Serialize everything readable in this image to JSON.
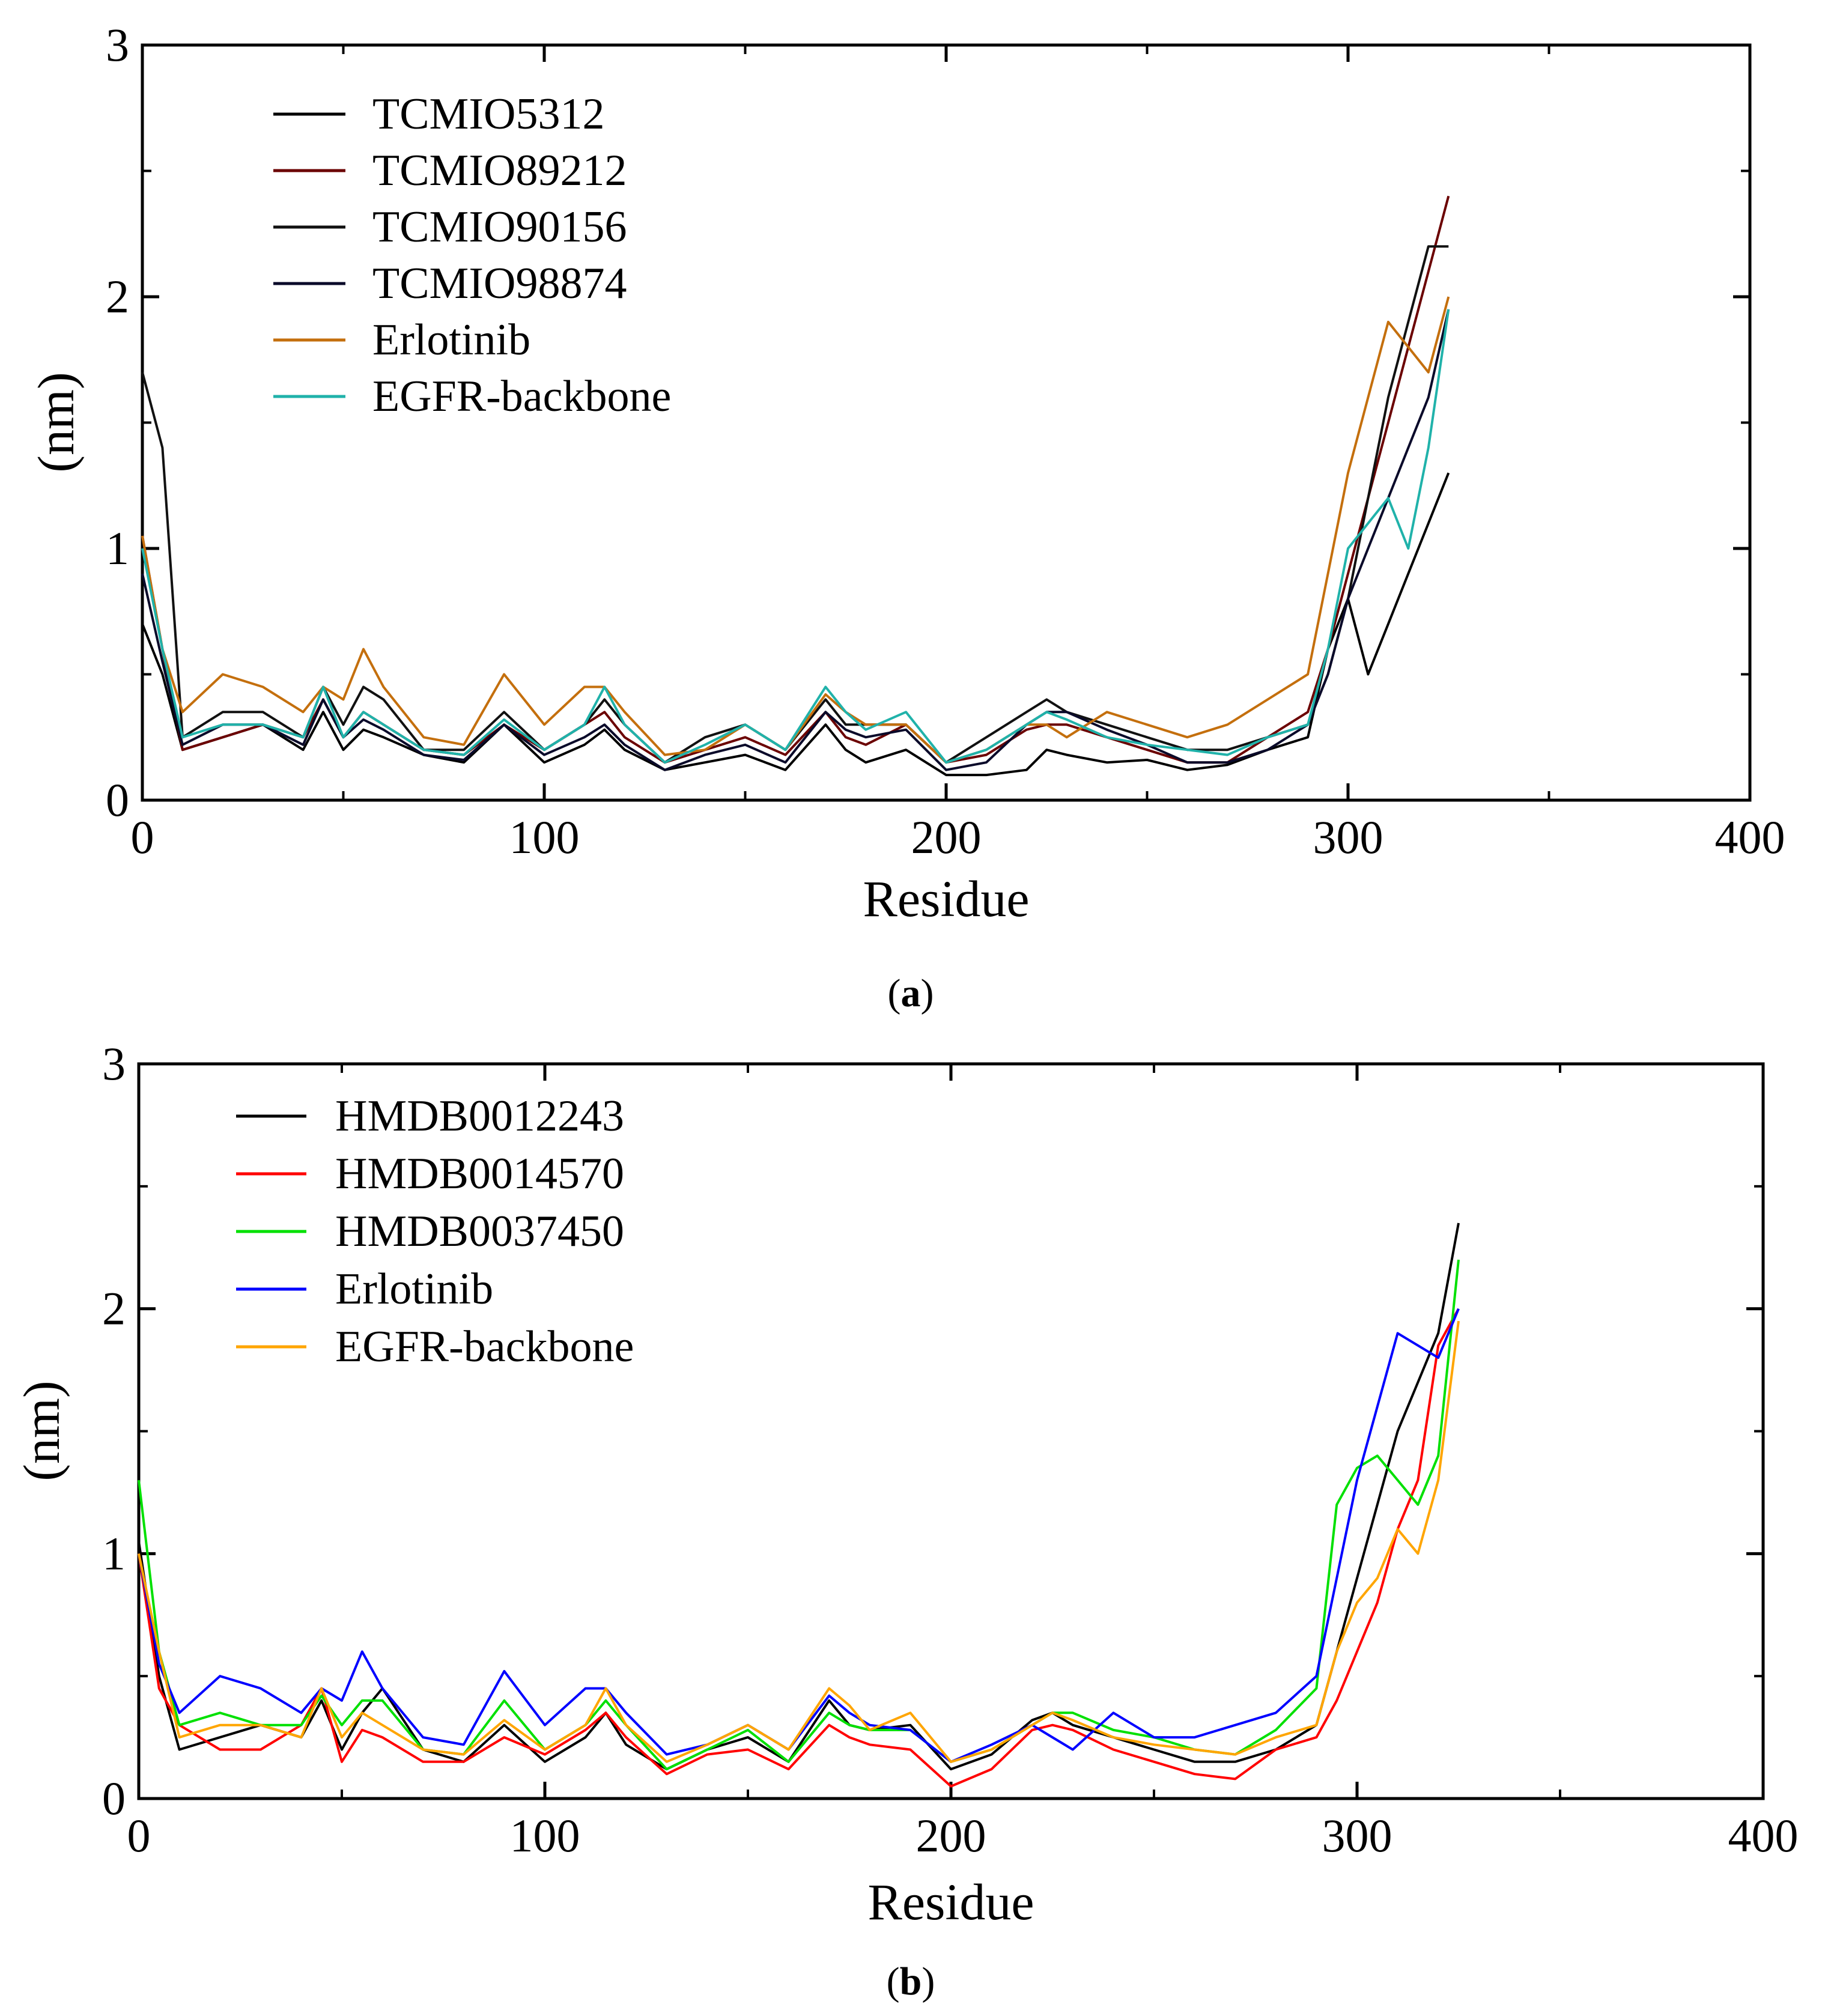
{
  "chart_data": [
    {
      "type": "line",
      "panel_label": "a",
      "xlabel": "Residue",
      "ylabel": "(nm)",
      "xlim": [
        0,
        400
      ],
      "ylim": [
        0,
        3
      ],
      "xticks": [
        "0",
        "100",
        "200",
        "300",
        "400"
      ],
      "yticks": [
        "0",
        "1",
        "2",
        "3"
      ],
      "grid": false,
      "legend_position": "top-left",
      "series": [
        {
          "name": "TCMIO5312",
          "color": "#000000",
          "x": [
            0,
            5,
            10,
            20,
            30,
            40,
            45,
            50,
            55,
            60,
            70,
            80,
            90,
            100,
            110,
            115,
            120,
            130,
            140,
            150,
            160,
            170,
            175,
            180,
            190,
            200,
            210,
            220,
            225,
            230,
            240,
            250,
            260,
            270,
            280,
            290,
            295,
            300,
            305,
            310,
            315,
            320,
            325
          ],
          "y": [
            0.7,
            0.5,
            0.2,
            0.25,
            0.3,
            0.2,
            0.35,
            0.2,
            0.28,
            0.25,
            0.18,
            0.15,
            0.3,
            0.15,
            0.22,
            0.28,
            0.2,
            0.12,
            0.15,
            0.18,
            0.12,
            0.3,
            0.2,
            0.15,
            0.2,
            0.1,
            0.1,
            0.12,
            0.2,
            0.18,
            0.15,
            0.16,
            0.12,
            0.14,
            0.2,
            0.25,
            0.6,
            0.8,
            0.5,
            0.7,
            0.9,
            1.1,
            1.3
          ]
        },
        {
          "name": "TCMIO89212",
          "color": "#6b0000",
          "x": [
            0,
            5,
            10,
            20,
            30,
            40,
            45,
            50,
            55,
            60,
            70,
            80,
            90,
            100,
            110,
            115,
            120,
            130,
            140,
            150,
            160,
            170,
            175,
            180,
            190,
            200,
            210,
            220,
            225,
            230,
            240,
            250,
            260,
            270,
            280,
            290,
            295,
            300,
            305,
            310,
            315,
            320,
            325
          ],
          "y": [
            1.05,
            0.6,
            0.2,
            0.25,
            0.3,
            0.25,
            0.4,
            0.25,
            0.35,
            0.3,
            0.2,
            0.18,
            0.3,
            0.2,
            0.3,
            0.35,
            0.25,
            0.15,
            0.2,
            0.25,
            0.18,
            0.35,
            0.25,
            0.22,
            0.3,
            0.15,
            0.18,
            0.28,
            0.3,
            0.3,
            0.25,
            0.2,
            0.15,
            0.15,
            0.25,
            0.35,
            0.6,
            0.9,
            1.2,
            1.5,
            1.8,
            2.1,
            2.4
          ]
        },
        {
          "name": "TCMIO90156",
          "color": "#111111",
          "x": [
            0,
            5,
            10,
            20,
            30,
            40,
            45,
            50,
            55,
            60,
            70,
            80,
            90,
            100,
            110,
            115,
            120,
            130,
            140,
            150,
            160,
            170,
            175,
            180,
            190,
            200,
            210,
            220,
            225,
            230,
            240,
            250,
            260,
            270,
            280,
            290,
            295,
            300,
            305,
            310,
            315,
            320,
            325
          ],
          "y": [
            1.7,
            1.4,
            0.25,
            0.35,
            0.35,
            0.25,
            0.45,
            0.3,
            0.45,
            0.4,
            0.2,
            0.2,
            0.35,
            0.2,
            0.3,
            0.4,
            0.3,
            0.15,
            0.25,
            0.3,
            0.2,
            0.4,
            0.3,
            0.3,
            0.3,
            0.15,
            0.25,
            0.35,
            0.4,
            0.35,
            0.3,
            0.25,
            0.2,
            0.2,
            0.25,
            0.3,
            0.5,
            0.8,
            1.2,
            1.6,
            1.9,
            2.2,
            2.2
          ]
        },
        {
          "name": "TCMIO98874",
          "color": "#0a0a2a",
          "x": [
            0,
            5,
            10,
            20,
            30,
            40,
            45,
            50,
            55,
            60,
            70,
            80,
            90,
            100,
            110,
            115,
            120,
            130,
            140,
            150,
            160,
            170,
            175,
            180,
            190,
            200,
            210,
            220,
            225,
            230,
            240,
            250,
            260,
            270,
            280,
            290,
            295,
            300,
            305,
            310,
            315,
            320,
            325
          ],
          "y": [
            0.9,
            0.55,
            0.22,
            0.3,
            0.3,
            0.22,
            0.4,
            0.25,
            0.32,
            0.28,
            0.18,
            0.16,
            0.3,
            0.18,
            0.25,
            0.3,
            0.22,
            0.12,
            0.18,
            0.22,
            0.15,
            0.35,
            0.28,
            0.25,
            0.28,
            0.12,
            0.15,
            0.3,
            0.35,
            0.35,
            0.28,
            0.22,
            0.15,
            0.15,
            0.2,
            0.3,
            0.5,
            0.8,
            1.0,
            1.2,
            1.4,
            1.6,
            1.95
          ]
        },
        {
          "name": "Erlotinib",
          "color": "#c46f0d",
          "x": [
            0,
            5,
            10,
            20,
            30,
            40,
            45,
            50,
            55,
            60,
            70,
            80,
            90,
            100,
            110,
            115,
            120,
            130,
            140,
            150,
            160,
            170,
            175,
            180,
            190,
            200,
            210,
            220,
            225,
            230,
            240,
            250,
            260,
            270,
            280,
            290,
            295,
            300,
            305,
            310,
            315,
            320,
            325
          ],
          "y": [
            1.05,
            0.6,
            0.35,
            0.5,
            0.45,
            0.35,
            0.45,
            0.4,
            0.6,
            0.45,
            0.25,
            0.22,
            0.5,
            0.3,
            0.45,
            0.45,
            0.35,
            0.18,
            0.2,
            0.3,
            0.2,
            0.42,
            0.35,
            0.3,
            0.3,
            0.15,
            0.2,
            0.3,
            0.3,
            0.25,
            0.35,
            0.3,
            0.25,
            0.3,
            0.4,
            0.5,
            0.9,
            1.3,
            1.6,
            1.9,
            1.8,
            1.7,
            2.0
          ]
        },
        {
          "name": "EGFR-backbone",
          "color": "#20b2aa",
          "x": [
            0,
            5,
            10,
            20,
            30,
            40,
            45,
            50,
            55,
            60,
            70,
            80,
            90,
            100,
            110,
            115,
            120,
            130,
            140,
            150,
            160,
            170,
            175,
            180,
            190,
            200,
            210,
            220,
            225,
            230,
            240,
            250,
            260,
            270,
            280,
            290,
            295,
            300,
            305,
            310,
            315,
            320,
            325
          ],
          "y": [
            1.0,
            0.6,
            0.25,
            0.3,
            0.3,
            0.25,
            0.45,
            0.25,
            0.35,
            0.3,
            0.2,
            0.18,
            0.32,
            0.2,
            0.3,
            0.45,
            0.3,
            0.15,
            0.22,
            0.3,
            0.2,
            0.45,
            0.35,
            0.28,
            0.35,
            0.15,
            0.2,
            0.3,
            0.35,
            0.32,
            0.25,
            0.22,
            0.2,
            0.18,
            0.25,
            0.3,
            0.6,
            1.0,
            1.1,
            1.2,
            1.0,
            1.4,
            1.95
          ]
        }
      ]
    },
    {
      "type": "line",
      "panel_label": "b",
      "xlabel": "Residue",
      "ylabel": "(nm)",
      "xlim": [
        0,
        400
      ],
      "ylim": [
        0,
        3
      ],
      "xticks": [
        "0",
        "100",
        "200",
        "300",
        "400"
      ],
      "yticks": [
        "0",
        "1",
        "2",
        "3"
      ],
      "grid": false,
      "legend_position": "top-left",
      "series": [
        {
          "name": "HMDB0012243",
          "color": "#000000",
          "x": [
            0,
            5,
            10,
            20,
            30,
            40,
            45,
            50,
            55,
            60,
            70,
            80,
            90,
            100,
            110,
            115,
            120,
            130,
            140,
            150,
            160,
            170,
            175,
            180,
            190,
            200,
            210,
            220,
            225,
            230,
            240,
            250,
            260,
            270,
            280,
            290,
            295,
            300,
            305,
            310,
            315,
            320,
            325
          ],
          "y": [
            1.05,
            0.5,
            0.2,
            0.25,
            0.3,
            0.25,
            0.4,
            0.2,
            0.35,
            0.45,
            0.2,
            0.15,
            0.3,
            0.15,
            0.25,
            0.35,
            0.22,
            0.12,
            0.2,
            0.25,
            0.15,
            0.4,
            0.3,
            0.28,
            0.3,
            0.12,
            0.18,
            0.32,
            0.35,
            0.3,
            0.25,
            0.2,
            0.15,
            0.15,
            0.2,
            0.3,
            0.6,
            0.9,
            1.2,
            1.5,
            1.7,
            1.9,
            2.35
          ]
        },
        {
          "name": "HMDB0014570",
          "color": "#ff0000",
          "x": [
            0,
            5,
            10,
            20,
            30,
            40,
            45,
            50,
            55,
            60,
            70,
            80,
            90,
            100,
            110,
            115,
            120,
            130,
            140,
            150,
            160,
            170,
            175,
            180,
            190,
            200,
            210,
            220,
            225,
            230,
            240,
            250,
            260,
            270,
            280,
            290,
            295,
            300,
            305,
            310,
            315,
            320,
            325
          ],
          "y": [
            1.0,
            0.45,
            0.3,
            0.2,
            0.2,
            0.3,
            0.45,
            0.15,
            0.28,
            0.25,
            0.15,
            0.15,
            0.25,
            0.18,
            0.28,
            0.35,
            0.25,
            0.1,
            0.18,
            0.2,
            0.12,
            0.3,
            0.25,
            0.22,
            0.2,
            0.05,
            0.12,
            0.28,
            0.3,
            0.28,
            0.2,
            0.15,
            0.1,
            0.08,
            0.2,
            0.25,
            0.4,
            0.6,
            0.8,
            1.1,
            1.3,
            1.85,
            2.0
          ]
        },
        {
          "name": "HMDB0037450",
          "color": "#00e000",
          "x": [
            0,
            5,
            10,
            20,
            30,
            40,
            45,
            50,
            55,
            60,
            70,
            80,
            90,
            100,
            110,
            115,
            120,
            130,
            140,
            150,
            160,
            170,
            175,
            180,
            190,
            200,
            210,
            220,
            225,
            230,
            240,
            250,
            260,
            270,
            280,
            290,
            295,
            300,
            305,
            310,
            315,
            320,
            325
          ],
          "y": [
            1.3,
            0.6,
            0.3,
            0.35,
            0.3,
            0.3,
            0.42,
            0.3,
            0.4,
            0.4,
            0.2,
            0.18,
            0.4,
            0.2,
            0.3,
            0.4,
            0.3,
            0.12,
            0.2,
            0.28,
            0.15,
            0.35,
            0.3,
            0.28,
            0.28,
            0.15,
            0.2,
            0.3,
            0.35,
            0.35,
            0.28,
            0.25,
            0.2,
            0.18,
            0.28,
            0.45,
            1.2,
            1.35,
            1.4,
            1.3,
            1.2,
            1.4,
            2.2
          ]
        },
        {
          "name": "Erlotinib",
          "color": "#0000ff",
          "x": [
            0,
            5,
            10,
            20,
            30,
            40,
            45,
            50,
            55,
            60,
            70,
            80,
            90,
            100,
            110,
            115,
            120,
            130,
            140,
            150,
            160,
            170,
            175,
            180,
            190,
            200,
            210,
            220,
            225,
            230,
            240,
            250,
            260,
            270,
            280,
            290,
            295,
            300,
            305,
            310,
            315,
            320,
            325
          ],
          "y": [
            1.0,
            0.55,
            0.35,
            0.5,
            0.45,
            0.35,
            0.45,
            0.4,
            0.6,
            0.45,
            0.25,
            0.22,
            0.52,
            0.3,
            0.45,
            0.45,
            0.35,
            0.18,
            0.22,
            0.3,
            0.2,
            0.42,
            0.35,
            0.3,
            0.28,
            0.15,
            0.22,
            0.3,
            0.25,
            0.2,
            0.35,
            0.25,
            0.25,
            0.3,
            0.35,
            0.5,
            0.9,
            1.3,
            1.6,
            1.9,
            1.85,
            1.8,
            2.0
          ]
        },
        {
          "name": "EGFR-backbone",
          "color": "#ffa500",
          "x": [
            0,
            5,
            10,
            20,
            30,
            40,
            45,
            50,
            55,
            60,
            70,
            80,
            90,
            100,
            110,
            115,
            120,
            130,
            140,
            150,
            160,
            170,
            175,
            180,
            190,
            200,
            210,
            220,
            225,
            230,
            240,
            250,
            260,
            270,
            280,
            290,
            295,
            300,
            305,
            310,
            315,
            320,
            325
          ],
          "y": [
            1.0,
            0.6,
            0.25,
            0.3,
            0.3,
            0.25,
            0.45,
            0.25,
            0.35,
            0.3,
            0.2,
            0.18,
            0.32,
            0.2,
            0.3,
            0.45,
            0.3,
            0.15,
            0.22,
            0.3,
            0.2,
            0.45,
            0.38,
            0.28,
            0.35,
            0.15,
            0.2,
            0.3,
            0.35,
            0.32,
            0.25,
            0.22,
            0.2,
            0.18,
            0.25,
            0.3,
            0.6,
            0.8,
            0.9,
            1.1,
            1.0,
            1.3,
            1.95
          ]
        }
      ]
    }
  ]
}
